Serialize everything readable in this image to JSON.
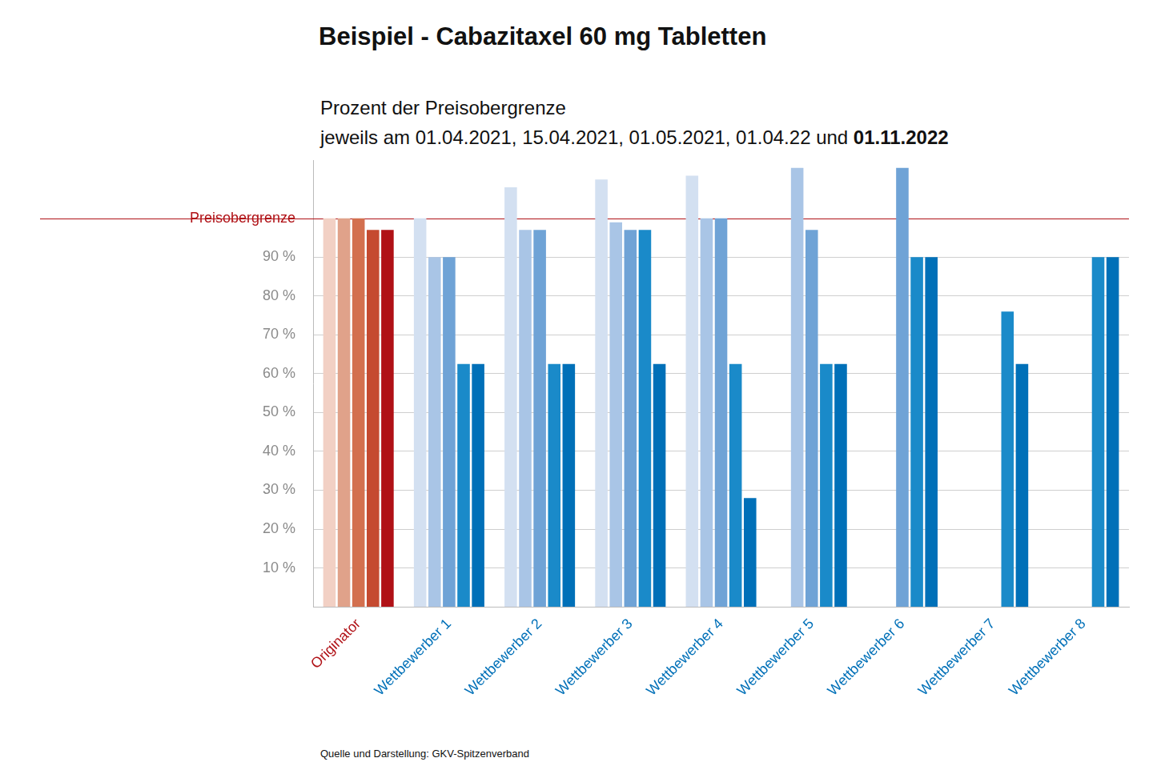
{
  "chart_data": {
    "type": "bar",
    "title": "Beispiel - Cabazitaxel 60 mg Tabletten",
    "subtitle": "Prozent der Preisobergrenze\njeweils am 01.04.2021, 15.04.2021, 01.05.2021, 01.04.22 und 01.11.2022",
    "annotations": [
      "Quelle und Darstellung: GKV-Spitzenverband"
    ],
    "categories": [
      "Originator",
      "Wettbewerber 1",
      "Wettbewerber 2",
      "Wettbewerber 3",
      "Wettbewerber 4",
      "Wettbewerber 5",
      "Wettbewerber 6",
      "Wettbewerber 7",
      "Wettbewerber 8"
    ],
    "series": [
      {
        "colors": [
          "#f2d0c4",
          "#d3e0f1",
          "#d3e0f1",
          "#d3e0f1",
          "#d3e0f1",
          "#d3e0f1",
          "#d3e0f1",
          "#d3e0f1",
          "#d3e0f1"
        ],
        "values": [
          100,
          100,
          108,
          110,
          111,
          null,
          null,
          null,
          null
        ]
      },
      {
        "colors": [
          "#e0a28a",
          "#a9c5e6",
          "#a9c5e6",
          "#a9c5e6",
          "#a9c5e6",
          "#a9c5e6",
          "#a9c5e6",
          "#a9c5e6",
          "#a9c5e6"
        ],
        "values": [
          100,
          90,
          97,
          99,
          100,
          113,
          null,
          null,
          null
        ]
      },
      {
        "colors": [
          "#d3704f",
          "#6fa3d6",
          "#6fa3d6",
          "#6fa3d6",
          "#6fa3d6",
          "#6fa3d6",
          "#6fa3d6",
          "#6fa3d6",
          "#6fa3d6"
        ],
        "values": [
          100,
          90,
          97,
          97,
          100,
          97,
          113,
          null,
          null
        ]
      },
      {
        "colors": [
          "#c54a30",
          "#1a8ac9",
          "#1a8ac9",
          "#1a8ac9",
          "#1a8ac9",
          "#1a8ac9",
          "#1a8ac9",
          "#1a8ac9",
          "#1a8ac9"
        ],
        "values": [
          97,
          62.5,
          62.5,
          97,
          62.5,
          62.5,
          90,
          76,
          90
        ]
      },
      {
        "colors": [
          "#b01116",
          "#0070b8",
          "#0070b8",
          "#0070b8",
          "#0070b8",
          "#0070b8",
          "#0070b8",
          "#0070b8",
          "#0070b8"
        ],
        "values": [
          97,
          62.5,
          62.5,
          62.5,
          28,
          62.5,
          90,
          62.5,
          90
        ]
      }
    ],
    "ylim": [
      0,
      115
    ],
    "yticks": [
      {
        "value": 10,
        "label": "10 %"
      },
      {
        "value": 20,
        "label": "20 %"
      },
      {
        "value": 30,
        "label": "30 %"
      },
      {
        "value": 40,
        "label": "40 %"
      },
      {
        "value": 50,
        "label": "50 %"
      },
      {
        "value": 60,
        "label": "60 %"
      },
      {
        "value": 70,
        "label": "70 %"
      },
      {
        "value": 80,
        "label": "80 %"
      },
      {
        "value": 90,
        "label": "90 %"
      },
      {
        "value": 100,
        "label": "Preisobergrenze"
      }
    ],
    "grid": true,
    "legend": false
  }
}
